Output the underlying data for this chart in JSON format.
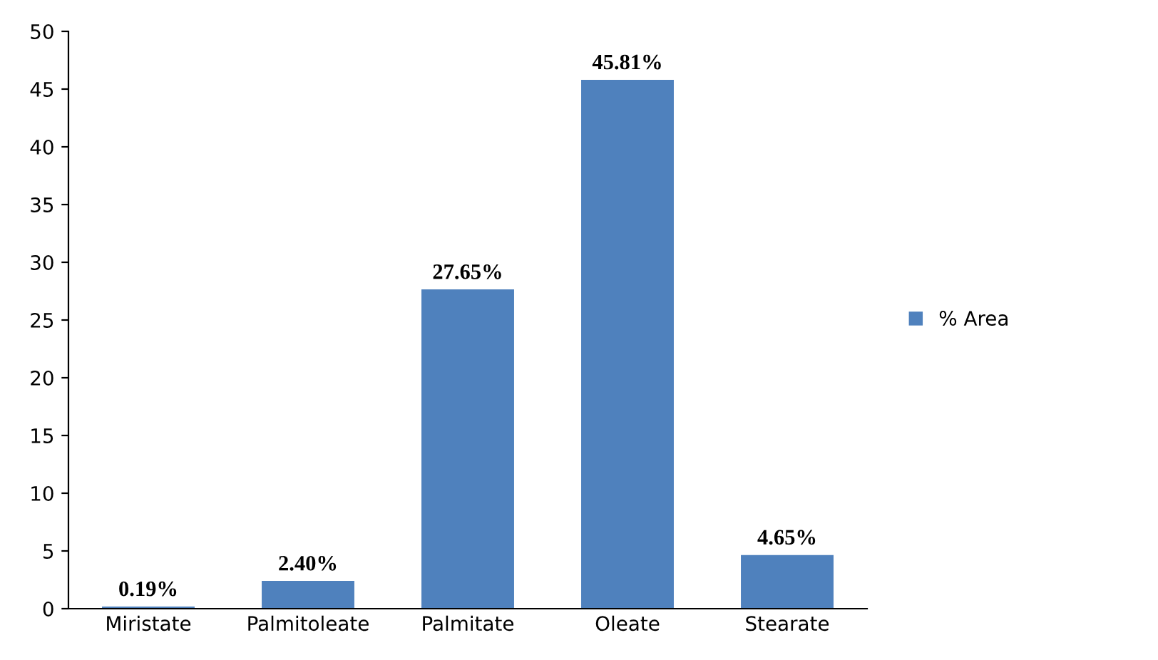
{
  "chart_data": {
    "type": "bar",
    "categories": [
      "Miristate",
      "Palmitoleate",
      "Palmitate",
      "Oleate",
      "Stearate"
    ],
    "series": [
      {
        "name": "% Area",
        "color": "#4f81bd",
        "values": [
          0.19,
          2.4,
          27.65,
          45.81,
          4.65
        ],
        "value_labels": [
          "0.19%",
          "2.40%",
          "27.65%",
          "45.81%",
          "4.65%"
        ]
      }
    ],
    "ylim": [
      0,
      50
    ],
    "yticks": [
      0,
      5,
      10,
      15,
      20,
      25,
      30,
      35,
      40,
      45,
      50
    ],
    "grid": false,
    "legend": "right"
  }
}
